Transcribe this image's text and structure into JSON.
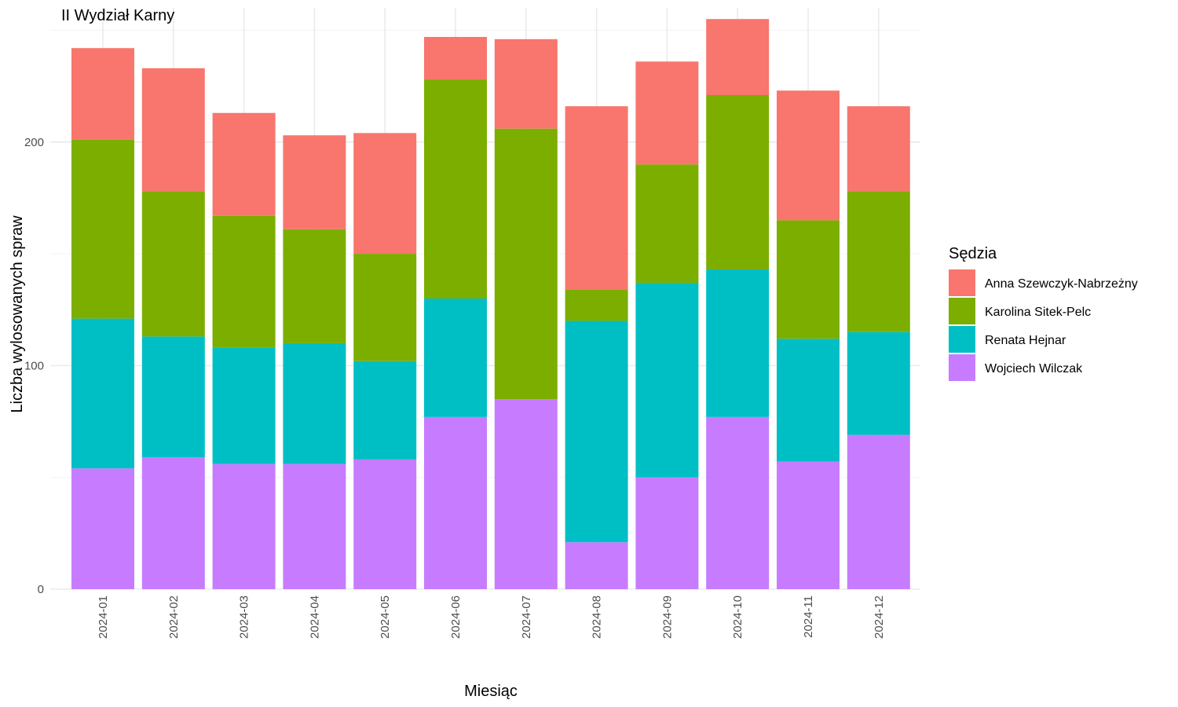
{
  "chart_data": {
    "type": "bar",
    "stacked": true,
    "title": "II Wydział Karny",
    "xlabel": "Miesiąc",
    "ylabel": "Liczba wylosowanych spraw",
    "categories": [
      "2024-01",
      "2024-02",
      "2024-03",
      "2024-04",
      "2024-05",
      "2024-06",
      "2024-07",
      "2024-08",
      "2024-09",
      "2024-10",
      "2024-11",
      "2024-12"
    ],
    "ylim": [
      0,
      260
    ],
    "yticks": [
      0,
      100,
      200
    ],
    "grid": true,
    "legend": {
      "title": "Sędzia",
      "position": "right"
    },
    "series": [
      {
        "name": "Wojciech Wilczak",
        "color": "#C77CFF",
        "values": [
          54,
          59,
          56,
          56,
          58,
          77,
          85,
          21,
          50,
          77,
          57,
          69
        ]
      },
      {
        "name": "Renata Hejnar",
        "color": "#00BFC4",
        "values": [
          67,
          54,
          52,
          54,
          44,
          53,
          0,
          99,
          87,
          66,
          55,
          46
        ]
      },
      {
        "name": "Karolina Sitek-Pelc",
        "color": "#7CAE00",
        "values": [
          80,
          65,
          59,
          51,
          48,
          98,
          121,
          14,
          53,
          78,
          53,
          63
        ]
      },
      {
        "name": "Anna Szewczyk-Nabrzeżny",
        "color": "#F8766D",
        "values": [
          41,
          55,
          46,
          42,
          54,
          19,
          40,
          82,
          46,
          34,
          58,
          38
        ]
      }
    ]
  }
}
